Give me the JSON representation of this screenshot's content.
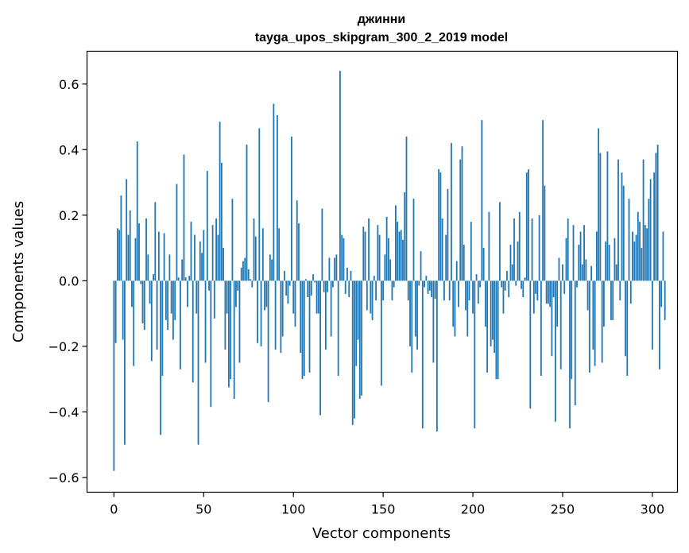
{
  "chart_data": {
    "type": "bar",
    "title": "джинни",
    "subtitle": "tayga_upos_skipgram_300_2_2019 model",
    "xlabel": "Vector components",
    "ylabel": "Components values",
    "xlim": [
      -15,
      314
    ],
    "ylim": [
      -0.645,
      0.7
    ],
    "x_ticks": [
      0,
      50,
      100,
      150,
      200,
      250,
      300
    ],
    "x_tick_labels": [
      "0",
      "50",
      "100",
      "150",
      "200",
      "250",
      "300"
    ],
    "y_ticks": [
      -0.6,
      -0.4,
      -0.2,
      0.0,
      0.2,
      0.4,
      0.6
    ],
    "y_tick_labels": [
      "−0.6",
      "−0.4",
      "−0.2",
      "0.0",
      "0.2",
      "0.4",
      "0.6"
    ],
    "grid": false,
    "bar_color": "#1f77b4",
    "x_start": 0,
    "values": [
      -0.58,
      -0.19,
      0.16,
      0.155,
      0.26,
      -0.18,
      -0.5,
      0.31,
      0.14,
      0.215,
      -0.08,
      -0.26,
      0.13,
      0.425,
      0.175,
      -0.01,
      -0.13,
      -0.15,
      0.19,
      0.08,
      -0.07,
      -0.245,
      0.02,
      0.24,
      -0.21,
      0.15,
      -0.47,
      -0.29,
      0.145,
      -0.12,
      -0.15,
      0.08,
      -0.1,
      -0.18,
      -0.12,
      0.295,
      0.01,
      -0.27,
      0.065,
      0.385,
      0.01,
      -0.08,
      0.015,
      0.18,
      -0.31,
      0.14,
      -0.1,
      -0.5,
      0.12,
      0.085,
      0.155,
      -0.25,
      0.335,
      -0.03,
      -0.385,
      0.17,
      -0.115,
      0.19,
      0.14,
      0.485,
      0.36,
      0.1,
      -0.21,
      -0.1,
      -0.325,
      -0.3,
      0.25,
      -0.36,
      -0.08,
      -0.03,
      -0.25,
      0.04,
      0.06,
      0.07,
      0.415,
      0.035,
      0.005,
      -0.02,
      0.19,
      0.135,
      -0.19,
      0.465,
      -0.2,
      0.16,
      -0.09,
      -0.08,
      -0.37,
      0.08,
      0.065,
      0.54,
      -0.21,
      0.505,
      0.16,
      -0.22,
      -0.17,
      0.03,
      -0.045,
      -0.07,
      -0.015,
      0.44,
      -0.1,
      -0.14,
      0.245,
      0.175,
      -0.22,
      -0.3,
      -0.29,
      0.005,
      -0.05,
      -0.28,
      -0.045,
      0.02,
      -0.005,
      -0.1,
      -0.1,
      -0.41,
      0.22,
      -0.035,
      -0.21,
      -0.035,
      0.07,
      -0.17,
      -0.02,
      0.07,
      0.08,
      -0.29,
      0.64,
      0.14,
      0.13,
      -0.04,
      0.04,
      -0.05,
      0.03,
      -0.44,
      -0.42,
      -0.26,
      -0.18,
      -0.36,
      -0.35,
      0.165,
      0.15,
      -0.09,
      0.19,
      -0.1,
      -0.12,
      0.015,
      -0.06,
      0.17,
      0.14,
      -0.32,
      -0.06,
      0.08,
      0.195,
      0.13,
      0.065,
      -0.06,
      -0.02,
      0.23,
      0.18,
      0.15,
      0.155,
      0.125,
      0.27,
      0.44,
      -0.06,
      -0.2,
      -0.28,
      0.25,
      -0.17,
      -0.21,
      -0.015,
      0.09,
      -0.45,
      -0.02,
      0.015,
      -0.04,
      -0.03,
      -0.05,
      -0.25,
      -0.055,
      -0.46,
      0.34,
      0.33,
      0.19,
      -0.06,
      0.14,
      0.28,
      -0.06,
      0.42,
      -0.14,
      -0.17,
      0.06,
      -0.08,
      0.37,
      0.41,
      0.11,
      -0.09,
      -0.17,
      -0.06,
      0.18,
      -0.1,
      -0.45,
      0.02,
      -0.07,
      -0.02,
      0.49,
      0.1,
      -0.14,
      -0.28,
      0.21,
      -0.2,
      -0.18,
      -0.22,
      -0.3,
      -0.3,
      0.24,
      -0.02,
      -0.1,
      -0.03,
      0.03,
      -0.05,
      0.11,
      0.05,
      0.19,
      -0.015,
      0.12,
      0.21,
      -0.025,
      -0.05,
      0.01,
      0.33,
      0.34,
      -0.39,
      0.19,
      -0.1,
      -0.04,
      -0.06,
      0.2,
      -0.29,
      0.49,
      0.29,
      -0.07,
      -0.07,
      -0.08,
      -0.23,
      -0.05,
      -0.43,
      -0.14,
      0.07,
      -0.27,
      0.05,
      -0.04,
      0.13,
      0.19,
      -0.45,
      -0.3,
      0.17,
      -0.38,
      -0.02,
      0.11,
      0.15,
      0.05,
      0.17,
      0.065,
      -0.09,
      -0.28,
      0.045,
      -0.21,
      -0.26,
      0.15,
      0.465,
      0.39,
      -0.25,
      -0.14,
      0.12,
      0.395,
      0.11,
      -0.12,
      -0.12,
      0.13,
      0.05,
      0.37,
      -0.06,
      0.33,
      0.29,
      -0.23,
      -0.29,
      0.25,
      -0.07,
      0.15,
      0.12,
      0.14,
      0.21,
      0.18,
      0.1,
      0.37,
      0.17,
      0.16,
      0.25,
      0.31,
      -0.21,
      0.33,
      0.39,
      0.415,
      -0.27,
      -0.08,
      0.15,
      -0.12
    ]
  }
}
